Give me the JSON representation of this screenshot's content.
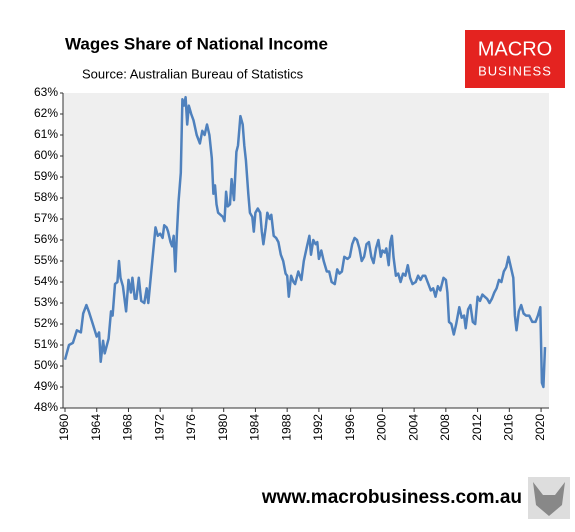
{
  "chart_data": {
    "type": "line",
    "title": "Wages Share of National Income",
    "subtitle": "Source: Australian Bureau of Statistics",
    "x": [
      1960,
      1960.5,
      1961,
      1961.5,
      1962,
      1962.3,
      1962.7,
      1963,
      1963.5,
      1964,
      1964.3,
      1964.5,
      1964.8,
      1965,
      1965.5,
      1965.8,
      1966,
      1966.3,
      1966.6,
      1966.8,
      1967,
      1967.3,
      1967.7,
      1968,
      1968.3,
      1968.5,
      1968.8,
      1969,
      1969.3,
      1969.6,
      1970,
      1970.3,
      1970.5,
      1970.7,
      1971,
      1971.4,
      1971.7,
      1972,
      1972.3,
      1972.5,
      1972.8,
      1973,
      1973.3,
      1973.5,
      1973.7,
      1973.9,
      1974.1,
      1974.3,
      1974.6,
      1974.8,
      1975,
      1975.2,
      1975.4,
      1975.6,
      1975.9,
      1976.2,
      1976.6,
      1977,
      1977.3,
      1977.6,
      1977.9,
      1978.2,
      1978.5,
      1978.7,
      1978.9,
      1979.1,
      1979.3,
      1979.6,
      1979.9,
      1980.1,
      1980.3,
      1980.5,
      1980.8,
      1981,
      1981.3,
      1981.6,
      1981.8,
      1982.1,
      1982.4,
      1982.6,
      1982.8,
      1983.1,
      1983.3,
      1983.6,
      1983.8,
      1984,
      1984.3,
      1984.6,
      1984.8,
      1985,
      1985.3,
      1985.5,
      1985.8,
      1986,
      1986.3,
      1986.6,
      1986.9,
      1987.2,
      1987.5,
      1987.8,
      1988,
      1988.2,
      1988.5,
      1988.8,
      1989,
      1989.4,
      1989.8,
      1990.1,
      1990.5,
      1990.8,
      1991,
      1991.3,
      1991.6,
      1991.8,
      1992,
      1992.3,
      1992.6,
      1993,
      1993.3,
      1993.6,
      1994,
      1994.3,
      1994.6,
      1994.9,
      1995.2,
      1995.6,
      1995.9,
      1996.2,
      1996.5,
      1996.8,
      1997.1,
      1997.4,
      1997.7,
      1998,
      1998.3,
      1998.6,
      1998.9,
      1999.2,
      1999.5,
      1999.8,
      2000,
      2000.3,
      2000.5,
      2000.8,
      2001,
      2001.2,
      2001.4,
      2001.7,
      2002,
      2002.3,
      2002.6,
      2002.9,
      2003.2,
      2003.5,
      2003.8,
      2004.2,
      2004.5,
      2004.8,
      2005.1,
      2005.4,
      2005.8,
      2006.1,
      2006.4,
      2006.7,
      2007,
      2007.3,
      2007.7,
      2008,
      2008.2,
      2008.4,
      2008.7,
      2009,
      2009.3,
      2009.7,
      2010,
      2010.3,
      2010.5,
      2010.8,
      2011.1,
      2011.4,
      2011.7,
      2012,
      2012.3,
      2012.6,
      2012.9,
      2013.2,
      2013.5,
      2013.8,
      2014.1,
      2014.4,
      2014.7,
      2015,
      2015.3,
      2015.6,
      2015.9,
      2016.2,
      2016.5,
      2016.7,
      2016.9,
      2017.2,
      2017.5,
      2017.8,
      2018.1,
      2018.5,
      2018.9,
      2019.3,
      2019.6,
      2019.9,
      2020.1,
      2020.3,
      2020.5
    ],
    "values": [
      50.3,
      51.0,
      51.1,
      51.7,
      51.6,
      52.5,
      52.9,
      52.6,
      52.0,
      51.4,
      51.6,
      50.2,
      51.2,
      50.6,
      51.3,
      52.6,
      52.4,
      53.9,
      54.0,
      55.0,
      54.2,
      53.8,
      52.6,
      54.1,
      53.5,
      54.2,
      53.2,
      53.2,
      54.2,
      53.1,
      53.0,
      53.7,
      53.0,
      53.8,
      55.0,
      56.6,
      56.2,
      56.3,
      56.1,
      56.7,
      56.6,
      56.4,
      55.9,
      55.7,
      56.2,
      54.5,
      56.3,
      57.8,
      59.2,
      62.7,
      62.4,
      62.8,
      61.5,
      62.4,
      62.0,
      61.7,
      61.0,
      60.6,
      61.2,
      61.0,
      61.5,
      61.0,
      59.9,
      58.2,
      58.6,
      57.7,
      57.3,
      57.2,
      57.1,
      56.9,
      58.3,
      57.6,
      57.7,
      58.9,
      57.9,
      60.2,
      60.5,
      61.9,
      61.5,
      60.5,
      59.8,
      58.2,
      57.3,
      57.1,
      56.4,
      57.3,
      57.5,
      57.3,
      56.4,
      55.8,
      56.6,
      57.3,
      57.0,
      57.2,
      56.2,
      56.1,
      55.9,
      55.3,
      55.0,
      54.4,
      54.3,
      53.3,
      54.3,
      54.0,
      53.9,
      54.5,
      54.1,
      55.0,
      55.7,
      56.2,
      55.3,
      56.0,
      55.8,
      55.9,
      55.1,
      55.5,
      55.0,
      54.5,
      54.5,
      54.0,
      53.9,
      54.6,
      54.4,
      54.5,
      55.2,
      55.1,
      55.2,
      55.8,
      56.1,
      56.0,
      55.6,
      55.0,
      55.2,
      55.8,
      55.9,
      55.2,
      54.9,
      55.6,
      56.0,
      55.2,
      55.5,
      55.4,
      55.6,
      54.8,
      55.9,
      56.2,
      55.2,
      54.3,
      54.4,
      54.0,
      54.4,
      54.3,
      54.8,
      54.2,
      53.9,
      54.0,
      54.3,
      54.1,
      54.3,
      54.3,
      53.9,
      53.6,
      53.7,
      53.3,
      53.8,
      53.6,
      54.2,
      54.1,
      53.5,
      52.1,
      52.0,
      51.5,
      52.0,
      52.8,
      52.3,
      52.4,
      51.8,
      52.7,
      52.9,
      52.1,
      52.0,
      53.3,
      53.1,
      53.4,
      53.3,
      53.2,
      53.0,
      53.2,
      53.5,
      53.7,
      54.1,
      54.0,
      54.5,
      54.7,
      55.2,
      54.7,
      54.2,
      52.4,
      51.7,
      52.6,
      52.9,
      52.5,
      52.4,
      52.4,
      52.1,
      52.1,
      52.4,
      52.8,
      49.2,
      49.0,
      50.9
    ],
    "color": "#4f81bd",
    "xlim": [
      1960,
      2021
    ],
    "xticks": [
      1960,
      1964,
      1968,
      1972,
      1976,
      1980,
      1984,
      1988,
      1992,
      1996,
      2000,
      2004,
      2008,
      2012,
      2016,
      2020
    ],
    "ylim": [
      48,
      63
    ],
    "yticks": [
      {
        "value": 48,
        "label": "48%"
      },
      {
        "value": 49,
        "label": "49%"
      },
      {
        "value": 50,
        "label": "50%"
      },
      {
        "value": 51,
        "label": "51%"
      },
      {
        "value": 52,
        "label": "52%"
      },
      {
        "value": 53,
        "label": "53%"
      },
      {
        "value": 54,
        "label": "54%"
      },
      {
        "value": 55,
        "label": "55%"
      },
      {
        "value": 56,
        "label": "56%"
      },
      {
        "value": 57,
        "label": "57%"
      },
      {
        "value": 58,
        "label": "58%"
      },
      {
        "value": 59,
        "label": "59%"
      },
      {
        "value": 60,
        "label": "60%"
      },
      {
        "value": 61,
        "label": "61%"
      },
      {
        "value": 62,
        "label": "62%"
      },
      {
        "value": 63,
        "label": "63%"
      }
    ],
    "grid": false
  },
  "logo": [
    "MACRO",
    "BUSINESS"
  ],
  "footer": "www.macrobusiness.com.au"
}
